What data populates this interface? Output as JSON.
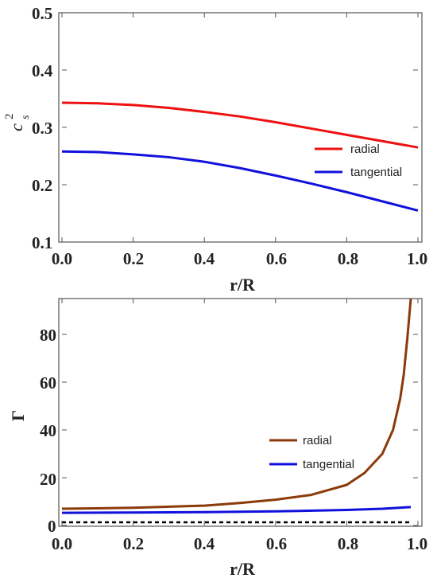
{
  "chart_data": [
    {
      "type": "line",
      "xlabel": "r/R",
      "ylabel_base": "c",
      "ylabel_sub": "s",
      "ylabel_sup": "2",
      "xlim": [
        0.0,
        1.0
      ],
      "ylim": [
        0.1,
        0.5
      ],
      "xticks": [
        "0.0",
        "0.2",
        "0.4",
        "0.6",
        "0.8",
        "1.0"
      ],
      "yticks": [
        "0.1",
        "0.2",
        "0.3",
        "0.4",
        "0.5"
      ],
      "legend_position": "right",
      "series": [
        {
          "name": "radial",
          "color": "#ee1111",
          "x": [
            0.0,
            0.1,
            0.2,
            0.3,
            0.4,
            0.5,
            0.6,
            0.7,
            0.8,
            0.9,
            1.0
          ],
          "y": [
            0.343,
            0.342,
            0.339,
            0.334,
            0.327,
            0.319,
            0.309,
            0.298,
            0.287,
            0.276,
            0.265
          ]
        },
        {
          "name": "tangential",
          "color": "#1111dd",
          "x": [
            0.0,
            0.1,
            0.2,
            0.3,
            0.4,
            0.5,
            0.6,
            0.7,
            0.8,
            0.9,
            1.0
          ],
          "y": [
            0.258,
            0.257,
            0.253,
            0.248,
            0.24,
            0.229,
            0.216,
            0.202,
            0.187,
            0.171,
            0.155
          ]
        }
      ]
    },
    {
      "type": "line",
      "xlabel": "r/R",
      "ylabel": "Γ",
      "xlim": [
        0.0,
        1.0
      ],
      "ylim": [
        0,
        95
      ],
      "xticks": [
        "0.0",
        "0.2",
        "0.4",
        "0.6",
        "0.8",
        "1.0"
      ],
      "yticks": [
        "0",
        "20",
        "40",
        "60",
        "80"
      ],
      "legend_position": "right",
      "series": [
        {
          "name": "radial",
          "color": "#8b3a0a",
          "x": [
            0.0,
            0.2,
            0.4,
            0.5,
            0.6,
            0.7,
            0.8,
            0.85,
            0.9,
            0.93,
            0.95,
            0.96,
            0.97,
            0.98
          ],
          "y": [
            7,
            7.4,
            8.3,
            9.4,
            10.8,
            12.8,
            17,
            22,
            30,
            40,
            53,
            63,
            78,
            95
          ]
        },
        {
          "name": "tangential",
          "color": "#1111dd",
          "x": [
            0.0,
            0.2,
            0.4,
            0.6,
            0.8,
            0.9,
            0.98
          ],
          "y": [
            5.3,
            5.4,
            5.6,
            5.9,
            6.5,
            7.0,
            7.7
          ]
        },
        {
          "name": "",
          "style": "dashed",
          "color": "#000000",
          "x": [
            0.0,
            0.98
          ],
          "y": [
            1.33,
            1.33
          ]
        }
      ]
    }
  ]
}
